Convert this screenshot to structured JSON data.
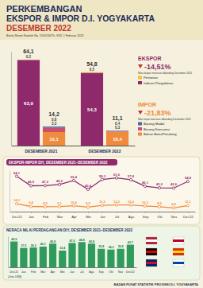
{
  "header": {
    "title_top": "PERKEMBANGAN",
    "title_main": "EKSPOR & IMPOR D.I. YOGYAKARTA",
    "period": "DESEMBER 2022",
    "source_note": "Berita Resmi Statistik No. 15/02/34/Th. XXV, 1 Februari 2023"
  },
  "chart_data": [
    {
      "type": "bar",
      "stacked": true,
      "data_labels": true,
      "tick_labels": "x",
      "categories": [
        "DESEMBER 2021",
        "DESEMBER 2022"
      ],
      "ylim": [
        0,
        70
      ],
      "groups": [
        {
          "name": "EKSPOR",
          "color": "#8e2a6c",
          "change": -14.51,
          "change_label": "-14,51%",
          "note": "Nilai ekspor menurun dibanding Desember 2021",
          "totals": [
            64.1,
            54.8
          ],
          "total_labels": [
            "64,1",
            "54,8"
          ],
          "series": [
            {
              "name": "Industri Pengolahan",
              "color": "#8e2a6c",
              "values": [
                63.9,
                54.3
              ],
              "value_labels": [
                "63,9",
                "54,3"
              ]
            },
            {
              "name": "Pertanian",
              "color": "#f2c230",
              "values": [
                0.2,
                0.5
              ],
              "value_labels": [
                "0,2",
                "0,5"
              ]
            }
          ]
        },
        {
          "name": "IMPOR",
          "color": "#f08a3c",
          "change": -21.83,
          "change_label": "-21,83%",
          "note": "Nilai impor menurun dibanding Desember 2021",
          "totals": [
            14.2,
            11.1
          ],
          "total_labels": [
            "14,2",
            "11,1"
          ],
          "series": [
            {
              "name": "Bahan Baku/Penolong",
              "color": "#f08a3c",
              "values": [
                10.1,
                10.4
              ],
              "value_labels": [
                "10,1",
                "10,4"
              ]
            },
            {
              "name": "Barang Konsumsi",
              "color": "#c94f6d",
              "values": [
                3.3,
                0.3
              ],
              "value_labels": [
                "3,3",
                "0,3"
              ]
            },
            {
              "name": "Barang Modal",
              "color": "#3a6ea5",
              "values": [
                0.8,
                0.4
              ],
              "value_labels": [
                "0,8",
                "0,4"
              ]
            }
          ]
        }
      ]
    },
    {
      "type": "line",
      "title": "EKSPOR-IMPOR DIY, DESEMBER 2021–DESEMBER 2022",
      "data_labels": true,
      "tick_labels": "x",
      "marker": "circle",
      "categories": [
        "Des'21",
        "Jan",
        "Feb",
        "Mar",
        "Apr",
        "Mei",
        "Jun",
        "Jul",
        "Agu",
        "Sep",
        "Okt",
        "Nov",
        "Des'22"
      ],
      "ylim": [
        0,
        75
      ],
      "series": [
        {
          "color": "#8e2a6c",
          "values": [
            64.1,
            46.9,
            47.2,
            49.2,
            56.4,
            40.4,
            58.3,
            61.0,
            57.8,
            46.1,
            43.2,
            42.6,
            54.8
          ],
          "value_labels": [
            "64,1",
            "46,9",
            "47,2",
            "49,2",
            "56,4",
            "40,4",
            "58,3",
            "61,0",
            "57,8",
            "46,1",
            "43,2",
            "42,6",
            "54,8"
          ]
        },
        {
          "color": "#f08a3c",
          "values": [
            14.2,
            9.4,
            8.9,
            9.1,
            10.6,
            8.0,
            11.3,
            12.2,
            12.0,
            10.3,
            8.9,
            6.8,
            11.1
          ],
          "value_labels": [
            "14,2",
            "9,4",
            "8,9",
            "9,1",
            "10,6",
            "8,0",
            "11,3",
            "12,2",
            "12,0",
            "10,3",
            "8,9",
            "6,8",
            "11,1"
          ]
        }
      ]
    },
    {
      "type": "bar",
      "title": "NERACA NILAI PERDAGANGAN DIY, DESEMBER 2021–DESEMBER 2022",
      "y_label": "(Juta US$)",
      "data_labels": true,
      "tick_labels": "x",
      "color": "#2f9b5c",
      "categories": [
        "Des'21",
        "Jan",
        "Feb",
        "Mar",
        "Apr",
        "Mei",
        "Jun",
        "Jul",
        "Agu",
        "Sep",
        "Okt",
        "Nov",
        "Des'22"
      ],
      "ylim": [
        0,
        60
      ],
      "values": [
        49.9,
        37.5,
        38.3,
        40.1,
        45.8,
        32.4,
        47.0,
        48.8,
        45.8,
        35.8,
        34.3,
        35.8,
        43.7
      ],
      "value_labels": [
        "49,9",
        "37,5",
        "38,3",
        "40,1",
        "45,8",
        "32,4",
        "47,0",
        "48,8",
        "45,8",
        "35,8",
        "34,3",
        "35,8",
        "43,7"
      ]
    }
  ],
  "footer": "BADAN PUSAT STATISTIK PROVINSI D.I. YOGYAKARTA"
}
